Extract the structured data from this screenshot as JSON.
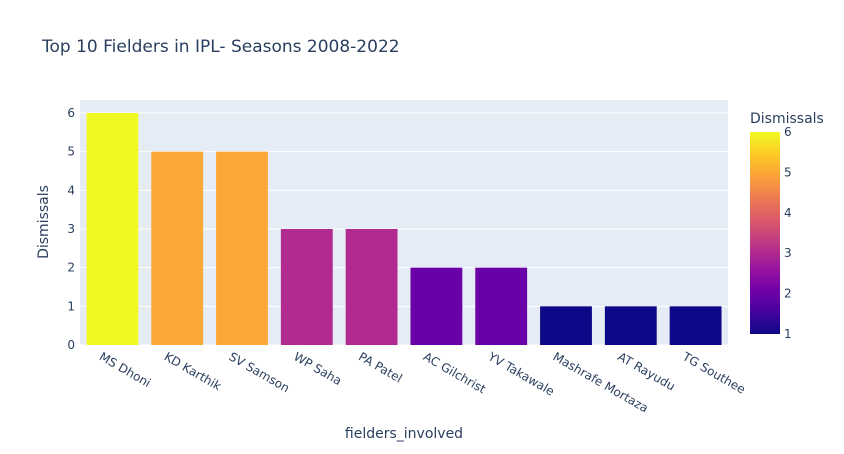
{
  "chart_data": {
    "type": "bar",
    "title": "Top 10 Fielders in IPL- Seasons 2008-2022",
    "xlabel": "fielders_involved",
    "ylabel": "Dismissals",
    "categories": [
      "MS Dhoni",
      "KD Karthik",
      "SV Samson",
      "WP Saha",
      "PA Patel",
      "AC Gilchrist",
      "YV Takawale",
      "Mashrafe Mortaza",
      "AT Rayudu",
      "TG Southee"
    ],
    "values": [
      6,
      5,
      5,
      3,
      3,
      2,
      2,
      1,
      1,
      1
    ],
    "ylim": [
      0,
      6
    ],
    "yticks": [
      "0",
      "1",
      "2",
      "3",
      "4",
      "5",
      "6"
    ],
    "grid": true,
    "plot_background": "#e5ecf6",
    "colorbar": {
      "title": "Dismissals",
      "range": [
        1,
        6
      ],
      "ticks": [
        "1",
        "2",
        "3",
        "4",
        "5",
        "6"
      ],
      "colorscale": [
        "#0d0887",
        "#46039f",
        "#7201a8",
        "#9c179e",
        "#bd3786",
        "#d8576b",
        "#ed7953",
        "#fb9f3a",
        "#fdca26",
        "#f0f921"
      ]
    }
  }
}
